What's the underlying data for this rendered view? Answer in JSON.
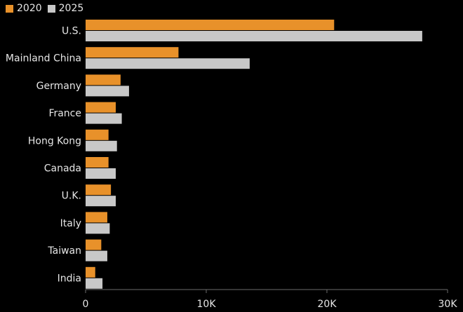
{
  "chart_data": {
    "type": "bar",
    "orientation": "horizontal",
    "categories": [
      "U.S.",
      "Mainland China",
      "Germany",
      "France",
      "Hong Kong",
      "Canada",
      "U.K.",
      "Italy",
      "Taiwan",
      "India"
    ],
    "series": [
      {
        "name": "2020",
        "color": "#e8912a",
        "values": [
          20600,
          7700,
          2900,
          2500,
          1900,
          1900,
          2100,
          1800,
          1300,
          800
        ]
      },
      {
        "name": "2025",
        "color": "#c8c8c8",
        "values": [
          27900,
          13600,
          3600,
          3000,
          2600,
          2500,
          2500,
          2000,
          1800,
          1400
        ]
      }
    ],
    "xlim": [
      0,
      30000
    ],
    "xticks": [
      {
        "value": 0,
        "label": "0"
      },
      {
        "value": 10000,
        "label": "10K"
      },
      {
        "value": 20000,
        "label": "20K"
      },
      {
        "value": 30000,
        "label": "30K"
      }
    ],
    "legend_position": "top-left",
    "grid": false
  }
}
